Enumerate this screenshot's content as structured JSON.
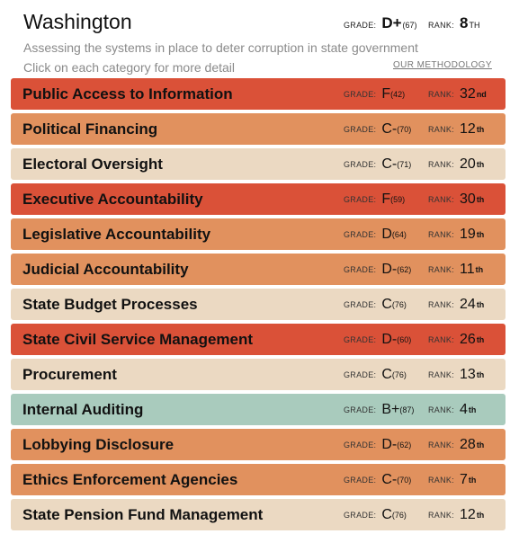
{
  "header": {
    "state": "Washington",
    "grade_label": "GRADE:",
    "grade": "D+",
    "grade_score": "(67)",
    "rank_label": "RANK:",
    "rank": "8",
    "rank_suffix": "TH"
  },
  "subtitle": "Assessing the systems in place to deter corruption in state government",
  "instruction": "Click on each category for more detail",
  "methodology_link": "OUR METHODOLOGY",
  "colors": {
    "F": "#da5138",
    "D": "#e1915e",
    "C": "#ebd9c2",
    "B": "#a9cbbd"
  },
  "category_grade_label": "GRADE:",
  "category_rank_label": "RANK:",
  "categories": [
    {
      "name": "Public Access to Information",
      "grade": "F",
      "score": "(42)",
      "rank": "32",
      "suffix": "nd",
      "tier": "F"
    },
    {
      "name": "Political Financing",
      "grade": "C-",
      "score": "(70)",
      "rank": "12",
      "suffix": "th",
      "tier": "D"
    },
    {
      "name": "Electoral Oversight",
      "grade": "C-",
      "score": "(71)",
      "rank": "20",
      "suffix": "th",
      "tier": "C"
    },
    {
      "name": "Executive Accountability",
      "grade": "F",
      "score": "(59)",
      "rank": "30",
      "suffix": "th",
      "tier": "F"
    },
    {
      "name": "Legislative Accountability",
      "grade": "D",
      "score": "(64)",
      "rank": "19",
      "suffix": "th",
      "tier": "D"
    },
    {
      "name": "Judicial Accountability",
      "grade": "D-",
      "score": "(62)",
      "rank": "11",
      "suffix": "th",
      "tier": "D"
    },
    {
      "name": "State Budget Processes",
      "grade": "C",
      "score": "(76)",
      "rank": "24",
      "suffix": "th",
      "tier": "C"
    },
    {
      "name": "State Civil Service Management",
      "grade": "D-",
      "score": "(60)",
      "rank": "26",
      "suffix": "th",
      "tier": "F"
    },
    {
      "name": "Procurement",
      "grade": "C",
      "score": "(76)",
      "rank": "13",
      "suffix": "th",
      "tier": "C"
    },
    {
      "name": "Internal Auditing",
      "grade": "B+",
      "score": "(87)",
      "rank": "4",
      "suffix": "th",
      "tier": "B"
    },
    {
      "name": "Lobbying Disclosure",
      "grade": "D-",
      "score": "(62)",
      "rank": "28",
      "suffix": "th",
      "tier": "D"
    },
    {
      "name": "Ethics Enforcement Agencies",
      "grade": "C-",
      "score": "(70)",
      "rank": "7",
      "suffix": "th",
      "tier": "D"
    },
    {
      "name": "State Pension Fund Management",
      "grade": "C",
      "score": "(76)",
      "rank": "12",
      "suffix": "th",
      "tier": "C"
    }
  ]
}
